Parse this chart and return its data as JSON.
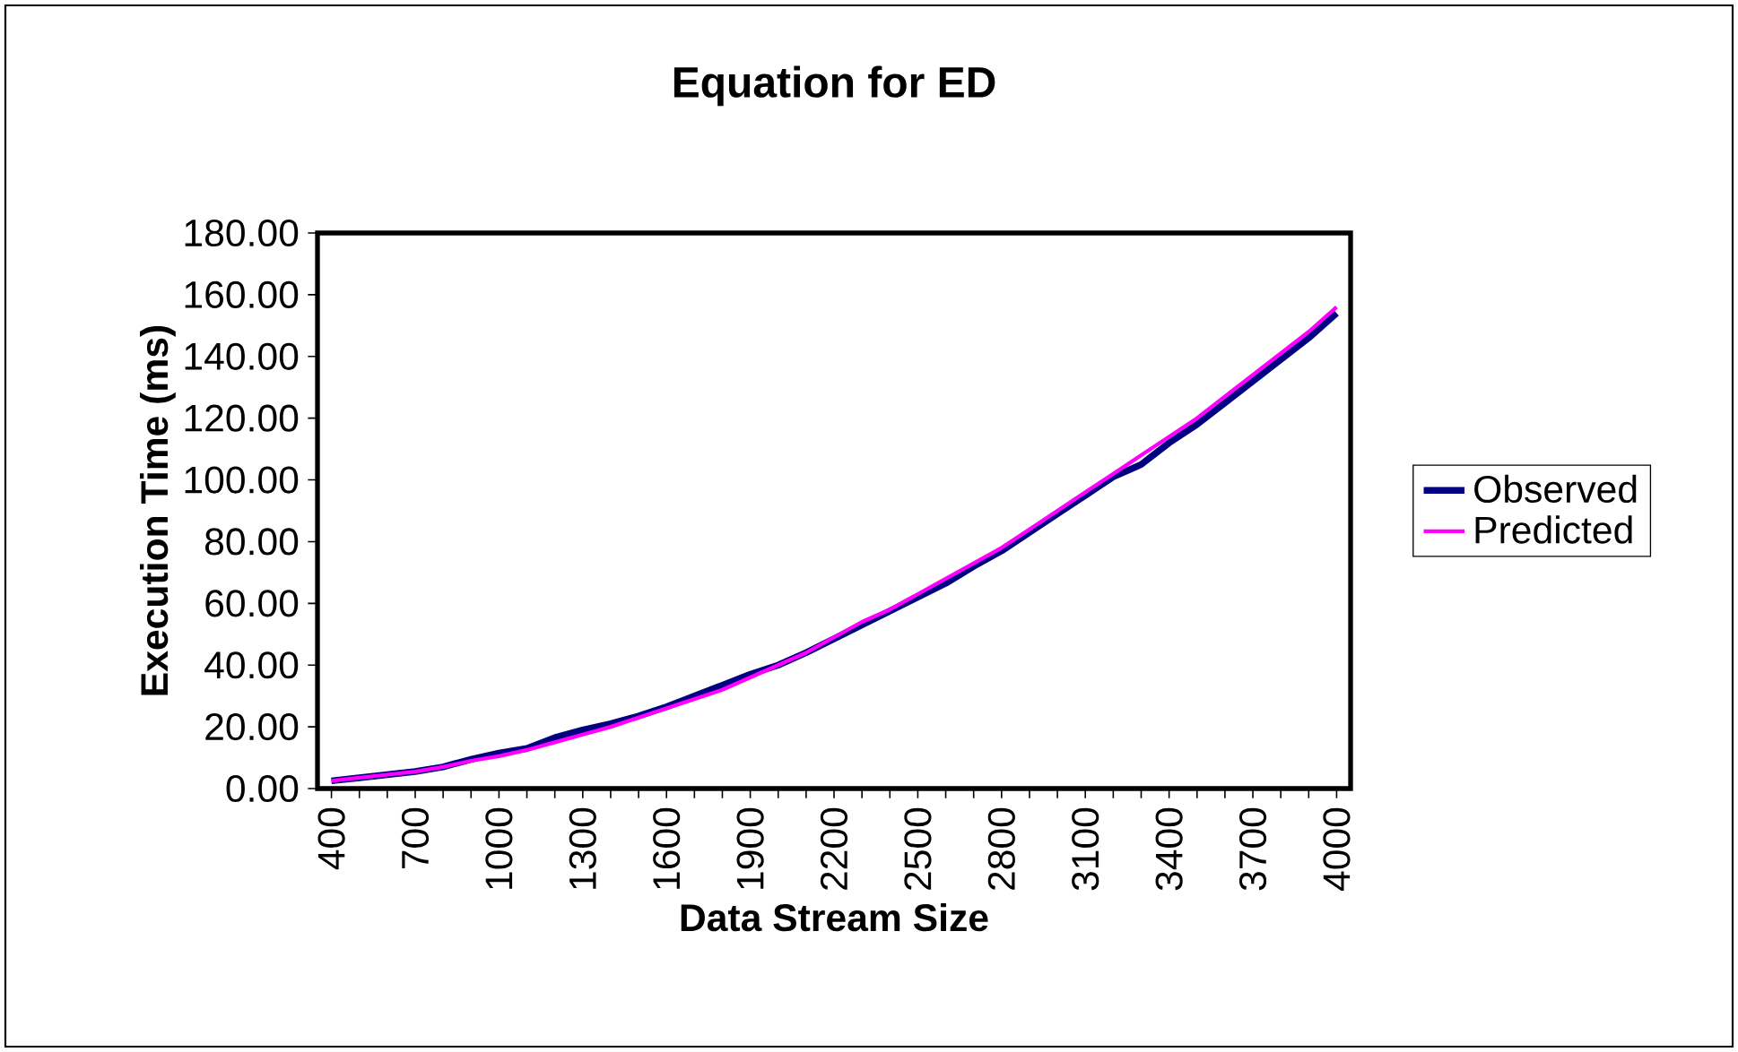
{
  "chart_data": {
    "type": "line",
    "title": "Equation for ED",
    "xlabel": "Data Stream Size",
    "ylabel": "Execution Time (ms)",
    "categories": [
      "400",
      null,
      null,
      "700",
      null,
      null,
      "1000",
      null,
      null,
      "1300",
      null,
      null,
      "1600",
      null,
      null,
      "1900",
      null,
      null,
      "2200",
      null,
      null,
      "2500",
      null,
      null,
      "2800",
      null,
      null,
      "3100",
      null,
      null,
      "3400",
      null,
      null,
      "3700",
      null,
      null,
      "4000"
    ],
    "series": [
      {
        "name": "Observed",
        "color": "#000080",
        "values": [
          2.5,
          3.5,
          4.5,
          5.5,
          7,
          9.5,
          11.5,
          13,
          16.5,
          19,
          21,
          23.5,
          26.5,
          30,
          33.5,
          37,
          40,
          44,
          48.5,
          53,
          57.5,
          62,
          66.5,
          72,
          77,
          83,
          89,
          95,
          101,
          105,
          112,
          118,
          125,
          132,
          139,
          146,
          154
        ]
      },
      {
        "name": "Predicted",
        "color": "#ff00ff",
        "values": [
          2.5,
          3.5,
          4.5,
          5.5,
          7,
          9,
          10.5,
          12.5,
          15,
          17.5,
          20,
          23,
          26,
          29,
          32,
          36,
          40,
          44,
          49,
          54,
          58,
          63,
          68,
          73,
          78,
          84,
          90,
          96,
          102,
          108,
          114,
          120,
          127,
          134,
          141,
          148,
          156
        ]
      }
    ],
    "ylim": [
      0,
      180
    ],
    "yticks": [
      {
        "value": 0,
        "label": "0.00"
      },
      {
        "value": 20,
        "label": "20.00"
      },
      {
        "value": 40,
        "label": "40.00"
      },
      {
        "value": 60,
        "label": "60.00"
      },
      {
        "value": 80,
        "label": "80.00"
      },
      {
        "value": 100,
        "label": "100.00"
      },
      {
        "value": 120,
        "label": "120.00"
      },
      {
        "value": 140,
        "label": "140.00"
      },
      {
        "value": 160,
        "label": "160.00"
      },
      {
        "value": 180,
        "label": "180.00"
      }
    ],
    "grid": false,
    "legend": "right",
    "marker": "none",
    "line_style": "solid"
  }
}
